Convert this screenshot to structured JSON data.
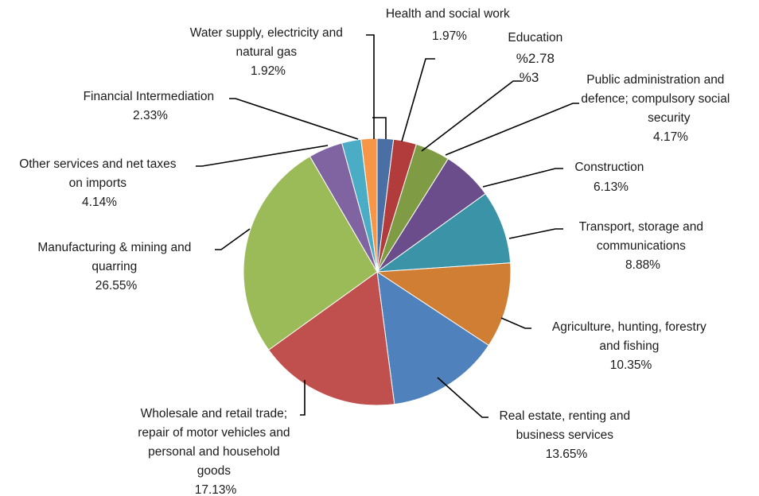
{
  "chart_data": {
    "type": "pie",
    "slices": [
      {
        "label": "Health and social work",
        "value": 1.97,
        "value_label": "1.97%",
        "color": "#4A6FA5"
      },
      {
        "label": "Education",
        "value": 2.78,
        "value_label": "%2.78",
        "value_label_2": "%3",
        "color": "#B23B3B"
      },
      {
        "label": "Public administration and defence; compulsory social security",
        "value": 4.17,
        "value_label": "4.17%",
        "color": "#7F9C45"
      },
      {
        "label": "Construction",
        "value": 6.13,
        "value_label": "6.13%",
        "color": "#6B4D8C"
      },
      {
        "label": "Transport, storage and communications",
        "value": 8.88,
        "value_label": "8.88%",
        "color": "#3A93A6"
      },
      {
        "label": "Agriculture, hunting, forestry and fishing",
        "value": 10.35,
        "value_label": "10.35%",
        "color": "#D07E34"
      },
      {
        "label": "Real estate, renting and business services",
        "value": 13.65,
        "value_label": "13.65%",
        "color": "#4F81BD"
      },
      {
        "label": "Wholesale and retail trade; repair of motor vehicles and personal and household goods",
        "value": 17.13,
        "value_label": "17.13%",
        "color": "#C0504D"
      },
      {
        "label": "Manufacturing & mining and quarring",
        "value": 26.55,
        "value_label": "26.55%",
        "color": "#9BBB59"
      },
      {
        "label": "Other services and net taxes on imports",
        "value": 4.14,
        "value_label": "4.14%",
        "color": "#8064A2"
      },
      {
        "label": "Financial Intermediation",
        "value": 2.33,
        "value_label": "2.33%",
        "color": "#4BACC6"
      },
      {
        "label": "Water supply, electricity and natural gas",
        "value": 1.92,
        "value_label": "1.92%",
        "color": "#F79646"
      }
    ],
    "legend": "none"
  },
  "labels": {
    "health": {
      "line1": "Health and social work",
      "value": "1.97%"
    },
    "education": {
      "line1": "Education",
      "value": "%2.78",
      "value2": "%3"
    },
    "public_admin": {
      "line1": "Public administration and",
      "line2": "defence; compulsory social",
      "line3": "security",
      "value": "4.17%"
    },
    "construction": {
      "line1": "Construction",
      "value": "6.13%"
    },
    "transport": {
      "line1": "Transport, storage and",
      "line2": "communications",
      "value": "8.88%"
    },
    "agriculture": {
      "line1": "Agriculture, hunting, forestry",
      "line2": "and fishing",
      "value": "10.35%"
    },
    "real_estate": {
      "line1": "Real estate, renting and",
      "line2": "business services",
      "value": "13.65%"
    },
    "wholesale": {
      "line1": "Wholesale and retail trade;",
      "line2": "repair of motor vehicles and",
      "line3": "personal and household",
      "line4": "goods",
      "value": "17.13%"
    },
    "manufacturing": {
      "line1": "Manufacturing & mining and",
      "line2": "quarring",
      "value": "26.55%"
    },
    "other_services": {
      "line1": "Other services and net taxes",
      "line2": "on imports",
      "value": "4.14%"
    },
    "financial": {
      "line1": "Financial Intermediation",
      "value": "2.33%"
    },
    "water": {
      "line1": "Water supply, electricity and",
      "line2": "natural gas",
      "value": "1.92%"
    }
  }
}
